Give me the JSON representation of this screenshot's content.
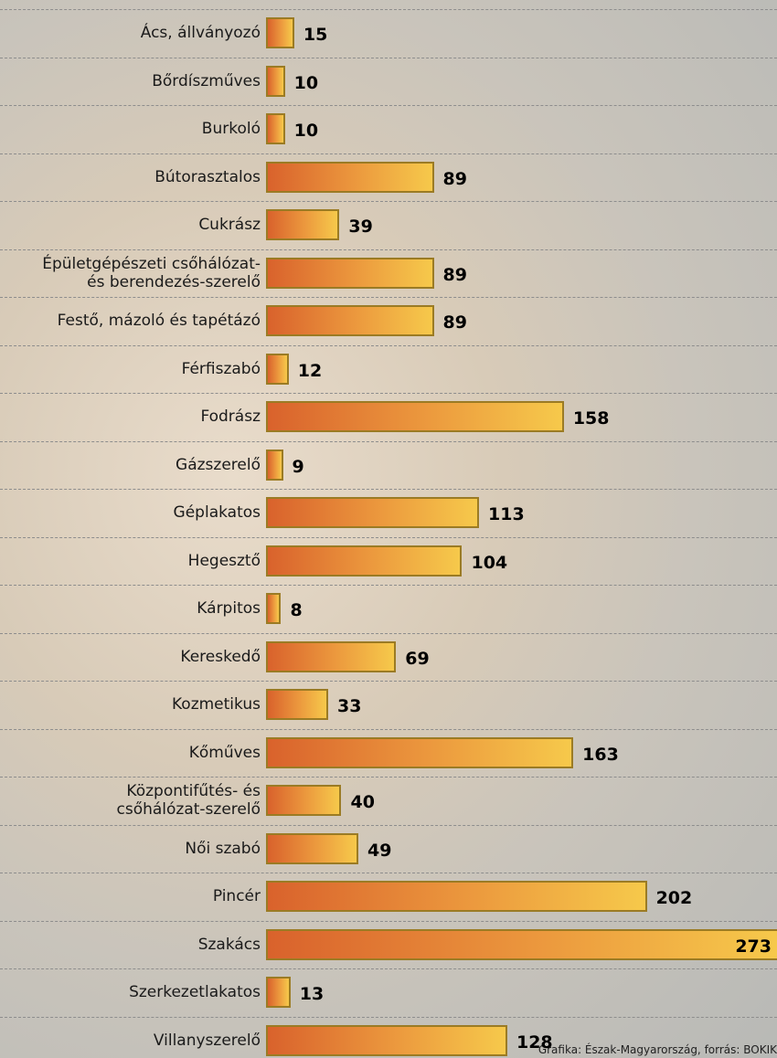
{
  "chart_data": {
    "type": "bar",
    "orientation": "horizontal",
    "categories": [
      "Ács, állványozó",
      "Bőrdíszműves",
      "Burkoló",
      "Bútorasztalos",
      "Cukrász",
      "Épületgépészeti csőhálózat-\nés berendezés-szerelő",
      "Festő, mázoló és tapétázó",
      "Férfiszabó",
      "Fodrász",
      "Gázszerelő",
      "Géplakatos",
      "Hegesztő",
      "Kárpitos",
      "Kereskedő",
      "Kozmetikus",
      "Kőműves",
      "Központifűtés- és\ncsőhálózat-szerelő",
      "Női szabó",
      "Pincér",
      "Szakács",
      "Szerkezetlakatos",
      "Villanyszerelő"
    ],
    "values": [
      15,
      10,
      10,
      89,
      39,
      89,
      89,
      12,
      158,
      9,
      113,
      104,
      8,
      69,
      33,
      163,
      40,
      49,
      202,
      273,
      13,
      128
    ],
    "color": "#ec9a3e",
    "source": "Grafika: Észak-Magyarország, forrás: BOKIK"
  }
}
